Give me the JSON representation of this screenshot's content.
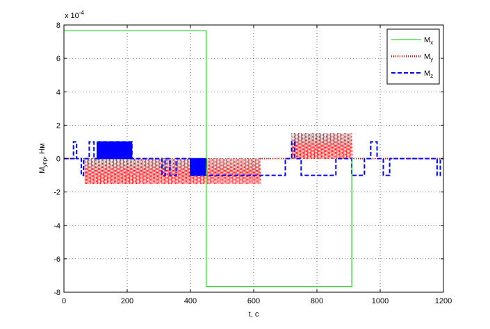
{
  "chart_data": {
    "type": "line",
    "xlabel": "t, c",
    "ylabel_main": "M",
    "ylabel_sub": "упр",
    "ylabel_unit": ", Нм",
    "exponent_label": "x 10",
    "exponent_value": "-4",
    "xlim": [
      0,
      1200
    ],
    "ylim": [
      -8,
      8
    ],
    "x_ticks": [
      0,
      200,
      400,
      600,
      800,
      1000,
      1200
    ],
    "y_ticks": [
      -8,
      -6,
      -4,
      -2,
      0,
      2,
      4,
      6,
      8
    ],
    "x_tick_labels": [
      "0",
      "200",
      "400",
      "600",
      "800",
      "1000",
      "1200"
    ],
    "y_tick_labels": [
      "-8",
      "-6",
      "-4",
      "-2",
      "0",
      "2",
      "4",
      "6",
      "8"
    ],
    "grid": true,
    "legend_position": "top-right",
    "series": [
      {
        "name": "M",
        "sub": "x",
        "color": "#00cc00",
        "style": "solid",
        "x": [
          0,
          450,
          450,
          910,
          910
        ],
        "y": [
          7.65,
          7.65,
          -7.65,
          -7.65,
          0
        ]
      },
      {
        "name": "M",
        "sub": "y",
        "color": "#ff0000",
        "style": "dotted",
        "oscillation_bands": [
          {
            "x_start": 65,
            "x_end": 620,
            "y_min": -1.5,
            "y_max": 0
          },
          {
            "x_start": 720,
            "x_end": 910,
            "y_min": 0,
            "y_max": 1.5
          }
        ]
      },
      {
        "name": "M",
        "sub": "z",
        "color": "#0000ff",
        "style": "dashed",
        "x": [
          0,
          30,
          30,
          40,
          40,
          55,
          55,
          62,
          62,
          80,
          80,
          95,
          95,
          110,
          110,
          215,
          215,
          310,
          310,
          320,
          320,
          335,
          335,
          355,
          355,
          400,
          400,
          450,
          450,
          700,
          700,
          720,
          720,
          730,
          730,
          750,
          750,
          770,
          770,
          860,
          860,
          910,
          910,
          950,
          950,
          970,
          970,
          990,
          990,
          1010,
          1010,
          1030,
          1030,
          1180,
          1180,
          1190,
          1190,
          1200
        ],
        "y": [
          0,
          0,
          1,
          1,
          0,
          0,
          -1,
          -1,
          0,
          0,
          1,
          1,
          0,
          0,
          1,
          1,
          0,
          0,
          -1,
          -1,
          0,
          0,
          -1,
          -1,
          0,
          0,
          -1,
          -1,
          -1,
          -1,
          0,
          0,
          1,
          1,
          0,
          0,
          -1,
          -1,
          -1,
          -1,
          0,
          0,
          -1,
          -1,
          0,
          0,
          1,
          1,
          0,
          0,
          -1,
          -1,
          0,
          0,
          -1,
          -1,
          0,
          0
        ]
      }
    ],
    "dense_blocks": [
      {
        "series": "z",
        "x_start": 105,
        "x_end": 215,
        "y_min": 0,
        "y_max": 1
      },
      {
        "series": "z",
        "x_start": 400,
        "x_end": 450,
        "y_min": -1,
        "y_max": 0
      }
    ]
  }
}
